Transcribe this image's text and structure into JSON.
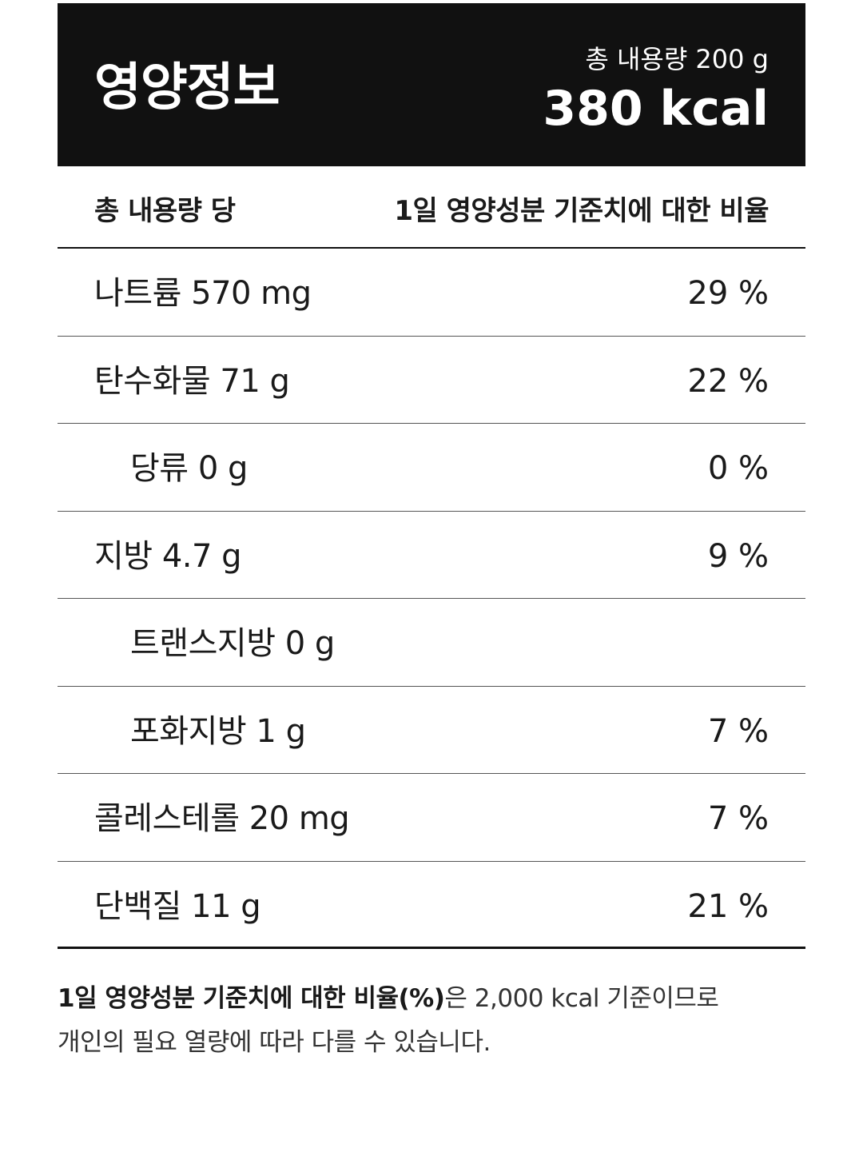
{
  "header": {
    "title": "영양정보",
    "total_volume": "총 내용량 200 g",
    "calories": "380 kcal"
  },
  "subheader": {
    "left": "총 내용량 당",
    "right": "1일 영양성분 기준치에 대한 비율"
  },
  "rows": [
    {
      "name": "나트륨 570 mg",
      "percent": "29 %",
      "indent": false
    },
    {
      "name": "탄수화물 71 g",
      "percent": "22 %",
      "indent": false
    },
    {
      "name": "당류 0 g",
      "percent": "0 %",
      "indent": true
    },
    {
      "name": "지방 4.7 g",
      "percent": "9 %",
      "indent": false
    },
    {
      "name": "트랜스지방 0 g",
      "percent": "",
      "indent": true
    },
    {
      "name": "포화지방 1 g",
      "percent": "7 %",
      "indent": true
    },
    {
      "name": "콜레스테롤 20 mg",
      "percent": "7 %",
      "indent": false
    },
    {
      "name": "단백질 11 g",
      "percent": "21 %",
      "indent": false
    }
  ],
  "footnote": {
    "bold_part": "1일 영양성분 기준치에 대한 비율(%)",
    "rest_line1": "은 2,000 kcal 기준이므로",
    "line2": "개인의 필요 열량에 따라 다를 수 있습니다."
  }
}
